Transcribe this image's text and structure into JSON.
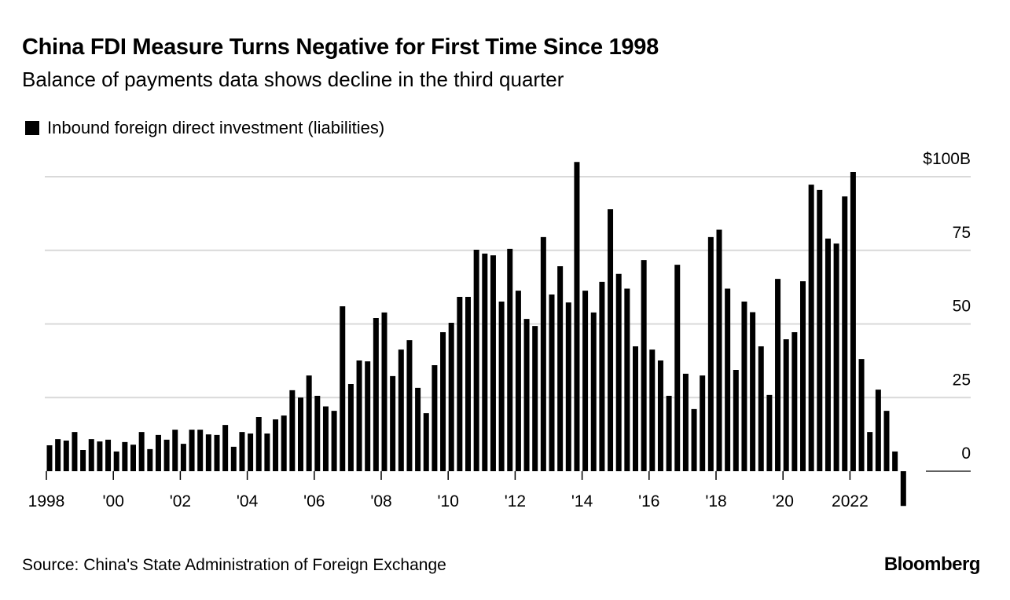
{
  "title": "China FDI Measure Turns Negative for First Time Since 1998",
  "subtitle": "Balance of payments data shows decline in the third quarter",
  "source": "Source: China's State Administration of Foreign Exchange",
  "logo": "Bloomberg",
  "chart_data": {
    "type": "bar",
    "title": "China FDI Measure Turns Negative for First Time Since 1998",
    "subtitle": "Balance of payments data shows decline in the third quarter",
    "legend": [
      {
        "name": "Inbound foreign direct investment (liabilities)",
        "color": "#000000"
      }
    ],
    "legend_placement": "top-left",
    "ylabel": "",
    "ylim": [
      -12,
      105
    ],
    "yticks": [
      0,
      25,
      50,
      75,
      100
    ],
    "ytick_labels": [
      "0",
      "25",
      "50",
      "75",
      "$100B"
    ],
    "xticks": [
      "1998",
      "'00",
      "'02",
      "'04",
      "'06",
      "'08",
      "'10",
      "'12",
      "'14",
      "'16",
      "'18",
      "'20",
      "2022"
    ],
    "grid": true,
    "start": "1998Q1",
    "frequency": "quarterly",
    "values": [
      8.8,
      10.9,
      10.4,
      13.3,
      7.2,
      10.9,
      10.1,
      10.7,
      6.7,
      9.9,
      9.0,
      13.3,
      7.5,
      12.3,
      10.7,
      14.1,
      9.3,
      14.1,
      14.1,
      12.5,
      12.3,
      15.7,
      8.3,
      13.3,
      12.8,
      18.4,
      12.8,
      17.6,
      18.9,
      27.5,
      25.0,
      32.5,
      25.6,
      22.0,
      20.5,
      56.0,
      29.6,
      37.6,
      37.3,
      52.0,
      53.9,
      32.3,
      41.3,
      44.5,
      28.3,
      19.7,
      36.0,
      47.2,
      50.4,
      59.2,
      59.2,
      75.2,
      73.9,
      73.3,
      57.6,
      75.5,
      61.3,
      51.7,
      49.3,
      79.5,
      60.0,
      69.6,
      57.3,
      105.0,
      61.3,
      53.9,
      64.3,
      89.0,
      67.0,
      62.0,
      42.4,
      71.7,
      41.3,
      37.6,
      25.6,
      70.1,
      33.1,
      21.1,
      32.5,
      79.5,
      82.0,
      62.0,
      34.4,
      57.6,
      54.0,
      42.4,
      25.9,
      65.3,
      44.8,
      47.2,
      64.5,
      97.3,
      95.5,
      79.0,
      77.3,
      93.3,
      101.6,
      38.1,
      13.3,
      27.7,
      20.5,
      6.7,
      -11.8
    ]
  }
}
